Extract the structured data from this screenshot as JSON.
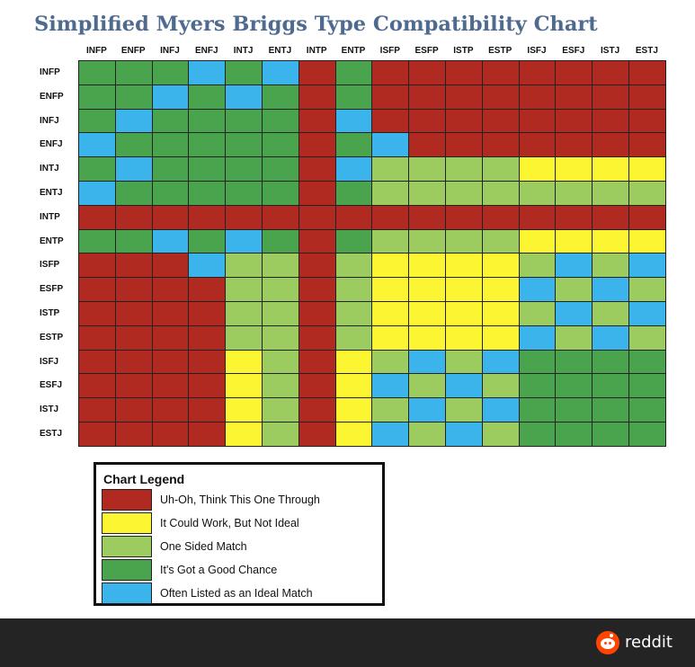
{
  "colors": {
    "R": "#b02a21",
    "Y": "#fcf531",
    "L": "#9ccc5f",
    "G": "#4aa44e",
    "B": "#3bb3eb"
  },
  "chart_data": {
    "type": "heatmap",
    "title": "Simplified Myers Briggs Type Compatibility Chart",
    "columns": [
      "INFP",
      "ENFP",
      "INFJ",
      "ENFJ",
      "INTJ",
      "ENTJ",
      "INTP",
      "ENTP",
      "ISFP",
      "ESFP",
      "ISTP",
      "ESTP",
      "ISFJ",
      "ESFJ",
      "ISTJ",
      "ESTJ"
    ],
    "rows": [
      "INFP",
      "ENFP",
      "INFJ",
      "ENFJ",
      "INTJ",
      "ENTJ",
      "INTP",
      "ENTP",
      "ISFP",
      "ESFP",
      "ISTP",
      "ESTP",
      "ISFJ",
      "ESFJ",
      "ISTJ",
      "ESTJ"
    ],
    "cells": [
      [
        "G",
        "G",
        "G",
        "B",
        "G",
        "B",
        "R",
        "G",
        "R",
        "R",
        "R",
        "R",
        "R",
        "R",
        "R",
        "R"
      ],
      [
        "G",
        "G",
        "B",
        "G",
        "B",
        "G",
        "R",
        "G",
        "R",
        "R",
        "R",
        "R",
        "R",
        "R",
        "R",
        "R"
      ],
      [
        "G",
        "B",
        "G",
        "G",
        "G",
        "G",
        "R",
        "B",
        "R",
        "R",
        "R",
        "R",
        "R",
        "R",
        "R",
        "R"
      ],
      [
        "B",
        "G",
        "G",
        "G",
        "G",
        "G",
        "R",
        "G",
        "B",
        "R",
        "R",
        "R",
        "R",
        "R",
        "R",
        "R"
      ],
      [
        "G",
        "B",
        "G",
        "G",
        "G",
        "G",
        "R",
        "B",
        "L",
        "L",
        "L",
        "L",
        "Y",
        "Y",
        "Y",
        "Y"
      ],
      [
        "B",
        "G",
        "G",
        "G",
        "G",
        "G",
        "R",
        "G",
        "L",
        "L",
        "L",
        "L",
        "L",
        "L",
        "L",
        "L"
      ],
      [
        "R",
        "R",
        "R",
        "R",
        "R",
        "R",
        "R",
        "R",
        "R",
        "R",
        "R",
        "R",
        "R",
        "R",
        "R",
        "R"
      ],
      [
        "G",
        "G",
        "B",
        "G",
        "B",
        "G",
        "R",
        "G",
        "L",
        "L",
        "L",
        "L",
        "Y",
        "Y",
        "Y",
        "Y"
      ],
      [
        "R",
        "R",
        "R",
        "B",
        "L",
        "L",
        "R",
        "L",
        "Y",
        "Y",
        "Y",
        "Y",
        "L",
        "B",
        "L",
        "B"
      ],
      [
        "R",
        "R",
        "R",
        "R",
        "L",
        "L",
        "R",
        "L",
        "Y",
        "Y",
        "Y",
        "Y",
        "B",
        "L",
        "B",
        "L"
      ],
      [
        "R",
        "R",
        "R",
        "R",
        "L",
        "L",
        "R",
        "L",
        "Y",
        "Y",
        "Y",
        "Y",
        "L",
        "B",
        "L",
        "B"
      ],
      [
        "R",
        "R",
        "R",
        "R",
        "L",
        "L",
        "R",
        "L",
        "Y",
        "Y",
        "Y",
        "Y",
        "B",
        "L",
        "B",
        "L"
      ],
      [
        "R",
        "R",
        "R",
        "R",
        "Y",
        "L",
        "R",
        "Y",
        "L",
        "B",
        "L",
        "B",
        "G",
        "G",
        "G",
        "G"
      ],
      [
        "R",
        "R",
        "R",
        "R",
        "Y",
        "L",
        "R",
        "Y",
        "B",
        "L",
        "B",
        "L",
        "G",
        "G",
        "G",
        "G"
      ],
      [
        "R",
        "R",
        "R",
        "R",
        "Y",
        "L",
        "R",
        "Y",
        "L",
        "B",
        "L",
        "B",
        "G",
        "G",
        "G",
        "G"
      ],
      [
        "R",
        "R",
        "R",
        "R",
        "Y",
        "L",
        "R",
        "Y",
        "B",
        "L",
        "B",
        "L",
        "G",
        "G",
        "G",
        "G"
      ]
    ],
    "legend": {
      "title": "Chart Legend",
      "entries": [
        {
          "key": "R",
          "label": "Uh-Oh, Think This One Through"
        },
        {
          "key": "Y",
          "label": "It Could Work, But Not Ideal"
        },
        {
          "key": "L",
          "label": "One Sided Match"
        },
        {
          "key": "G",
          "label": "It's Got a Good Chance"
        },
        {
          "key": "B",
          "label": "Often Listed as an Ideal Match"
        }
      ]
    }
  },
  "footer": {
    "brand": "reddit",
    "logo_icon": "reddit-snoo-icon"
  }
}
